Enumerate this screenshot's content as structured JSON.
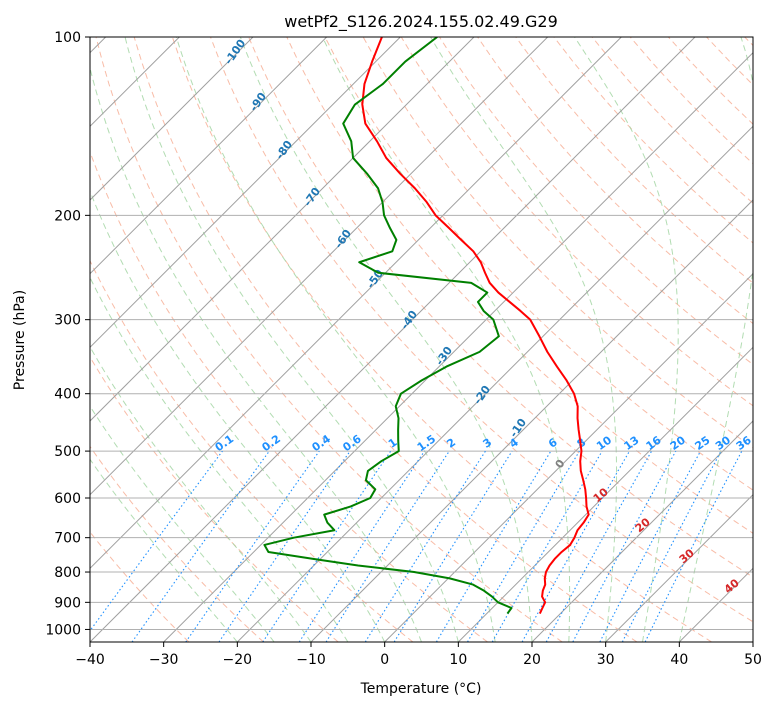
{
  "chart_data": {
    "type": "line",
    "title": "wetPf2_S126.2024.155.02.49.G29",
    "xlabel": "Temperature (°C)",
    "ylabel": "Pressure (hPa)",
    "xlim": [
      -40,
      50
    ],
    "ylim": [
      1050,
      100
    ],
    "x_scale": "linear (skewed isotherms)",
    "y_scale": "log",
    "x_ticks": [
      "−40",
      "−30",
      "−20",
      "−10",
      "0",
      "10",
      "20",
      "30",
      "40",
      "50"
    ],
    "y_ticks": [
      "100",
      "200",
      "300",
      "400",
      "500",
      "600",
      "700",
      "800",
      "900",
      "1000"
    ],
    "grid": true,
    "series": [
      {
        "color": "#ff0000",
        "pressure": [
          940,
          920,
          900,
          880,
          860,
          840,
          820,
          800,
          780,
          760,
          740,
          720,
          700,
          680,
          660,
          640,
          620,
          600,
          580,
          560,
          540,
          520,
          500,
          480,
          460,
          440,
          420,
          400,
          380,
          360,
          340,
          320,
          300,
          290,
          280,
          270,
          260,
          250,
          240,
          230,
          220,
          210,
          200,
          190,
          180,
          170,
          160,
          150,
          140,
          130,
          120,
          110,
          100
        ],
        "temperature": [
          17.2,
          16.8,
          16.4,
          15.2,
          14.5,
          14.0,
          13.1,
          12.4,
          12.0,
          11.8,
          11.8,
          12.0,
          11.6,
          11.0,
          10.8,
          10.4,
          9.0,
          7.8,
          6.5,
          5.0,
          3.4,
          2.0,
          0.8,
          -0.8,
          -2.5,
          -4.2,
          -5.8,
          -8.0,
          -10.8,
          -14.0,
          -17.3,
          -20.5,
          -24.0,
          -26.5,
          -29.2,
          -32.0,
          -34.5,
          -36.5,
          -38.5,
          -41.0,
          -44.2,
          -47.5,
          -51.0,
          -54.0,
          -57.5,
          -61.5,
          -65.5,
          -69.0,
          -73.0,
          -76.0,
          -78.5,
          -80.5,
          -82.5
        ]
      },
      {
        "color": "#008000",
        "pressure": [
          940,
          920,
          900,
          880,
          860,
          840,
          820,
          800,
          780,
          760,
          740,
          720,
          700,
          680,
          660,
          640,
          620,
          600,
          580,
          560,
          540,
          520,
          500,
          480,
          460,
          440,
          420,
          400,
          380,
          360,
          340,
          320,
          300,
          290,
          280,
          270,
          260,
          250,
          240,
          230,
          220,
          210,
          200,
          190,
          180,
          170,
          160,
          150,
          140,
          130,
          120,
          110,
          100
        ],
        "temperature": [
          12.8,
          12.6,
          10.0,
          8.4,
          6.5,
          4.2,
          0.2,
          -5.5,
          -14.0,
          -21.0,
          -28.0,
          -29.5,
          -26.5,
          -22.0,
          -24.0,
          -25.5,
          -23.0,
          -21.5,
          -22.0,
          -24.5,
          -25.5,
          -25.0,
          -24.0,
          -25.5,
          -27.0,
          -28.5,
          -30.5,
          -31.5,
          -30.5,
          -29.0,
          -26.5,
          -26.0,
          -29.0,
          -31.5,
          -33.5,
          -33.5,
          -37.0,
          -51.0,
          -55.0,
          -52.0,
          -53.0,
          -55.5,
          -58.0,
          -60.0,
          -62.5,
          -66.0,
          -70.0,
          -72.5,
          -76.0,
          -77.0,
          -76.0,
          -76.0,
          -75.0
        ]
      }
    ],
    "dry_adiabats_label_values": [
      "10",
      "20",
      "30",
      "40"
    ],
    "moist_adiabats_label_values": [
      "-100",
      "-90",
      "-80",
      "-70",
      "-60",
      "-50",
      "-40",
      "-30",
      "-20",
      "-10",
      "0"
    ],
    "mixing_ratio_label_values": [
      "0.1",
      "0.2",
      "0.4",
      "0.6",
      "1",
      "1.5",
      "2",
      "3",
      "4",
      "6",
      "8",
      "10",
      "13",
      "16",
      "20",
      "25",
      "30",
      "36"
    ],
    "mixing_ratio_values": [
      0.1,
      0.2,
      0.4,
      0.6,
      1,
      1.5,
      2,
      3,
      4,
      6,
      8,
      10,
      13,
      16,
      20,
      25,
      30,
      36
    ],
    "dry_adiabat_thetas_C": [
      -30,
      -20,
      -10,
      0,
      10,
      20,
      30,
      40,
      50,
      60,
      70,
      80,
      90,
      100,
      110,
      120,
      130,
      140,
      150,
      160,
      170,
      180,
      190,
      200
    ],
    "moist_adiabat_start_temps_C": [
      -20,
      -15,
      -10,
      -5,
      0,
      5,
      10,
      15,
      20,
      25,
      30,
      35,
      40
    ],
    "colors": {
      "temperature": "#ff0000",
      "dewpoint": "#008000",
      "isotherm": "#a0a0a0",
      "isobar": "#b0b0b0",
      "dry_adiabat": "#f5a58a",
      "moist_adiabat": "#9fd39f",
      "mixing_ratio": "#1E90FF"
    }
  }
}
